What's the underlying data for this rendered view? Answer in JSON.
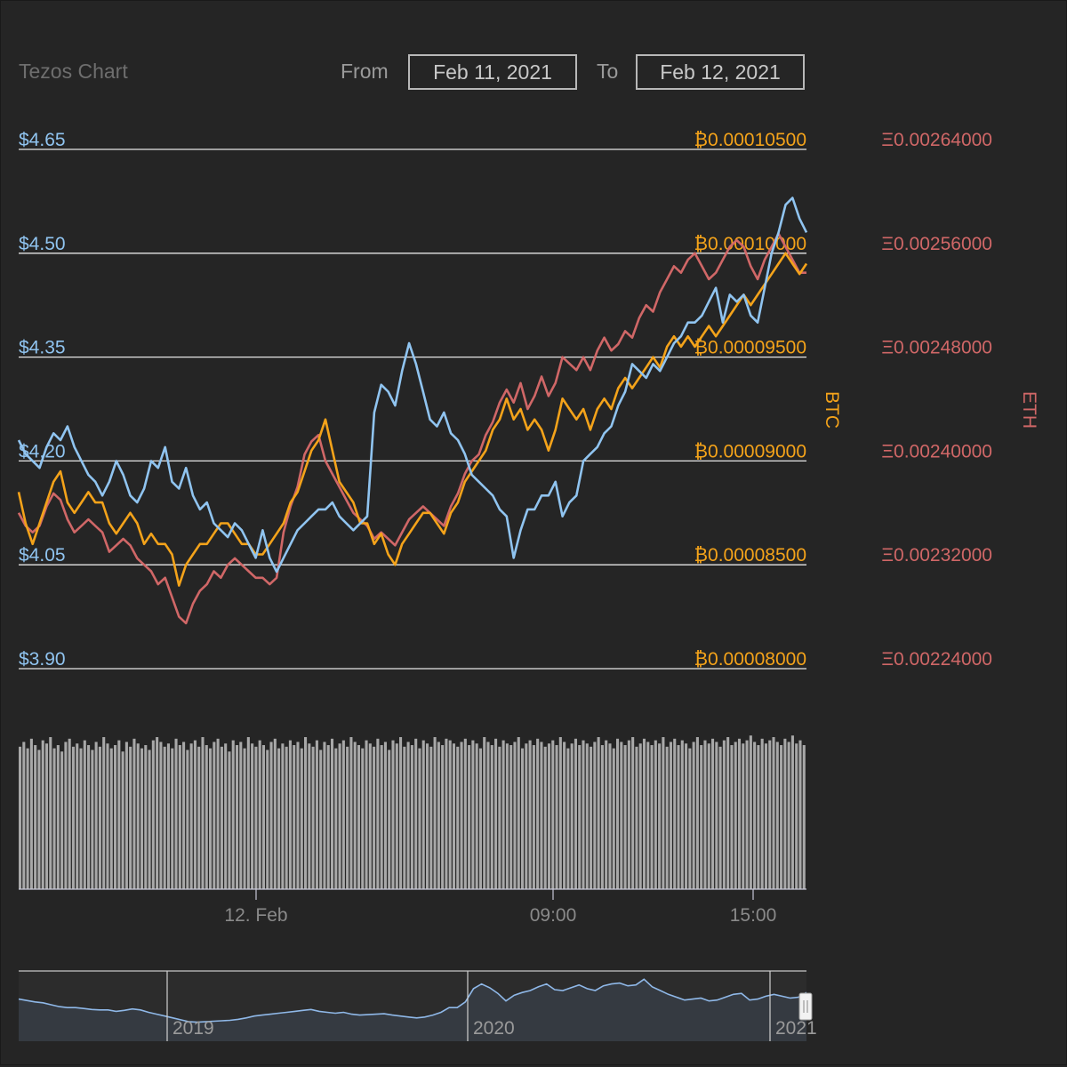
{
  "header": {
    "title": "Tezos Chart",
    "from_label": "From",
    "from_value": "Feb 11, 2021",
    "to_label": "To",
    "to_value": "Feb 12, 2021"
  },
  "colors": {
    "usd": "#90c4f0",
    "btc": "#f4a31a",
    "eth": "#d06767",
    "volume": "#a8a8a8",
    "navigator": "#8fb8e8"
  },
  "chart_data": {
    "type": "line",
    "x_ticks": [
      "12. Feb",
      "09:00",
      "15:00"
    ],
    "axes": {
      "usd": {
        "labels": [
          "$4.65",
          "$4.50",
          "$4.35",
          "$4.20",
          "$4.05",
          "$3.90"
        ],
        "range": [
          3.9,
          4.65
        ]
      },
      "btc": {
        "title": "BTC",
        "labels": [
          "₿0.00010500",
          "₿0.00010000",
          "₿0.00009500",
          "₿0.00009000",
          "₿0.00008500",
          "₿0.00008000"
        ],
        "range": [
          8e-05,
          0.000105
        ]
      },
      "eth": {
        "title": "ETH",
        "labels": [
          "Ξ0.00264000",
          "Ξ0.00256000",
          "Ξ0.00248000",
          "Ξ0.00240000",
          "Ξ0.00232000",
          "Ξ0.00224000"
        ],
        "range": [
          0.00224,
          0.00264
        ]
      }
    },
    "series": [
      {
        "key": "usd",
        "axis": "usd",
        "values": [
          4.23,
          4.21,
          4.2,
          4.19,
          4.22,
          4.24,
          4.23,
          4.25,
          4.22,
          4.2,
          4.18,
          4.17,
          4.15,
          4.17,
          4.2,
          4.18,
          4.15,
          4.14,
          4.16,
          4.2,
          4.19,
          4.22,
          4.17,
          4.16,
          4.19,
          4.15,
          4.13,
          4.14,
          4.11,
          4.1,
          4.09,
          4.11,
          4.1,
          4.08,
          4.06,
          4.1,
          4.06,
          4.04,
          4.06,
          4.08,
          4.1,
          4.11,
          4.12,
          4.13,
          4.13,
          4.14,
          4.12,
          4.11,
          4.1,
          4.11,
          4.12,
          4.27,
          4.31,
          4.3,
          4.28,
          4.33,
          4.37,
          4.34,
          4.3,
          4.26,
          4.25,
          4.27,
          4.24,
          4.23,
          4.21,
          4.18,
          4.17,
          4.16,
          4.15,
          4.13,
          4.12,
          4.06,
          4.1,
          4.13,
          4.13,
          4.15,
          4.15,
          4.17,
          4.12,
          4.14,
          4.15,
          4.2,
          4.21,
          4.22,
          4.24,
          4.25,
          4.28,
          4.3,
          4.34,
          4.33,
          4.32,
          4.34,
          4.33,
          4.35,
          4.37,
          4.38,
          4.4,
          4.4,
          4.41,
          4.43,
          4.45,
          4.4,
          4.44,
          4.43,
          4.44,
          4.41,
          4.4,
          4.45,
          4.5,
          4.53,
          4.57,
          4.58,
          4.55,
          4.53
        ]
      },
      {
        "key": "btc",
        "axis": "btc",
        "values": [
          8.85e-05,
          8.7e-05,
          8.6e-05,
          8.7e-05,
          8.8e-05,
          8.9e-05,
          8.95e-05,
          8.8e-05,
          8.75e-05,
          8.8e-05,
          8.85e-05,
          8.8e-05,
          8.8e-05,
          8.7e-05,
          8.65e-05,
          8.7e-05,
          8.75e-05,
          8.7e-05,
          8.6e-05,
          8.65e-05,
          8.6e-05,
          8.6e-05,
          8.55e-05,
          8.4e-05,
          8.5e-05,
          8.55e-05,
          8.6e-05,
          8.6e-05,
          8.65e-05,
          8.7e-05,
          8.7e-05,
          8.65e-05,
          8.6e-05,
          8.6e-05,
          8.55e-05,
          8.55e-05,
          8.6e-05,
          8.65e-05,
          8.7e-05,
          8.8e-05,
          8.85e-05,
          8.95e-05,
          9.05e-05,
          9.1e-05,
          9.2e-05,
          9.05e-05,
          8.9e-05,
          8.85e-05,
          8.8e-05,
          8.7e-05,
          8.7e-05,
          8.6e-05,
          8.65e-05,
          8.55e-05,
          8.5e-05,
          8.6e-05,
          8.65e-05,
          8.7e-05,
          8.75e-05,
          8.75e-05,
          8.7e-05,
          8.65e-05,
          8.75e-05,
          8.8e-05,
          8.9e-05,
          8.95e-05,
          9e-05,
          9.05e-05,
          9.15e-05,
          9.2e-05,
          9.3e-05,
          9.2e-05,
          9.25e-05,
          9.15e-05,
          9.2e-05,
          9.15e-05,
          9.05e-05,
          9.15e-05,
          9.3e-05,
          9.25e-05,
          9.2e-05,
          9.25e-05,
          9.15e-05,
          9.25e-05,
          9.3e-05,
          9.25e-05,
          9.35e-05,
          9.4e-05,
          9.35e-05,
          9.4e-05,
          9.45e-05,
          9.5e-05,
          9.45e-05,
          9.55e-05,
          9.6e-05,
          9.55e-05,
          9.6e-05,
          9.55e-05,
          9.6e-05,
          9.65e-05,
          9.6e-05,
          9.65e-05,
          9.7e-05,
          9.75e-05,
          9.8e-05,
          9.75e-05,
          9.8e-05,
          9.85e-05,
          9.9e-05,
          9.95e-05,
          0.0001,
          9.95e-05,
          9.9e-05,
          9.95e-05
        ]
      },
      {
        "key": "eth",
        "axis": "eth",
        "values": [
          0.00236,
          0.00235,
          0.002345,
          0.00235,
          0.002365,
          0.002375,
          0.00237,
          0.002355,
          0.002345,
          0.00235,
          0.002355,
          0.00235,
          0.002345,
          0.00233,
          0.002335,
          0.00234,
          0.002335,
          0.002325,
          0.00232,
          0.002315,
          0.002305,
          0.00231,
          0.002295,
          0.00228,
          0.002275,
          0.00229,
          0.0023,
          0.002305,
          0.002315,
          0.00231,
          0.00232,
          0.002325,
          0.00232,
          0.002315,
          0.00231,
          0.00231,
          0.002305,
          0.00231,
          0.002345,
          0.002365,
          0.00238,
          0.002405,
          0.002415,
          0.00242,
          0.0024,
          0.00239,
          0.00238,
          0.00237,
          0.00236,
          0.002355,
          0.00235,
          0.00234,
          0.002345,
          0.00234,
          0.002335,
          0.002345,
          0.002355,
          0.00236,
          0.002365,
          0.00236,
          0.002355,
          0.00235,
          0.002365,
          0.002375,
          0.00239,
          0.0024,
          0.002405,
          0.00242,
          0.00243,
          0.002445,
          0.002455,
          0.002445,
          0.00246,
          0.00244,
          0.00245,
          0.002465,
          0.00245,
          0.00246,
          0.00248,
          0.002475,
          0.00247,
          0.00248,
          0.00247,
          0.002485,
          0.002495,
          0.002485,
          0.00249,
          0.0025,
          0.002495,
          0.00251,
          0.00252,
          0.002515,
          0.00253,
          0.00254,
          0.00255,
          0.002545,
          0.002555,
          0.00256,
          0.00255,
          0.00254,
          0.002545,
          0.002555,
          0.002565,
          0.00257,
          0.002565,
          0.00255,
          0.00254,
          0.002555,
          0.002565,
          0.002575,
          0.002565,
          0.002555,
          0.002545,
          0.002545
        ]
      }
    ],
    "volume": [
      0.89,
      0.92,
      0.88,
      0.94,
      0.9,
      0.87,
      0.93,
      0.91,
      0.95,
      0.88,
      0.9,
      0.86,
      0.92,
      0.94,
      0.89,
      0.91,
      0.88,
      0.93,
      0.9,
      0.87,
      0.92,
      0.89,
      0.95,
      0.91,
      0.88,
      0.9,
      0.93,
      0.86,
      0.92,
      0.89,
      0.94,
      0.91,
      0.88,
      0.9,
      0.87,
      0.93,
      0.95,
      0.92,
      0.89,
      0.91,
      0.88,
      0.94,
      0.9,
      0.92,
      0.87,
      0.91,
      0.93,
      0.89,
      0.95,
      0.9,
      0.88,
      0.92,
      0.94,
      0.89,
      0.91,
      0.86,
      0.93,
      0.9,
      0.92,
      0.88,
      0.95,
      0.91,
      0.89,
      0.93,
      0.9,
      0.87,
      0.92,
      0.94,
      0.88,
      0.91,
      0.89,
      0.93,
      0.9,
      0.92,
      0.88,
      0.95,
      0.91,
      0.89,
      0.93,
      0.87,
      0.92,
      0.9,
      0.94,
      0.88,
      0.91,
      0.93,
      0.89,
      0.95,
      0.92,
      0.9,
      0.88,
      0.93,
      0.91,
      0.89,
      0.94,
      0.9,
      0.92,
      0.87,
      0.93,
      0.91,
      0.95,
      0.89,
      0.92,
      0.9,
      0.94,
      0.88,
      0.93,
      0.91,
      0.89,
      0.95,
      0.92,
      0.9,
      0.94,
      0.93,
      0.91,
      0.89,
      0.92,
      0.94,
      0.9,
      0.93,
      0.91,
      0.88,
      0.95,
      0.92,
      0.9,
      0.94,
      0.89,
      0.93,
      0.91,
      0.9,
      0.92,
      0.95,
      0.88,
      0.91,
      0.93,
      0.9,
      0.94,
      0.92,
      0.89,
      0.91,
      0.93,
      0.9,
      0.95,
      0.92,
      0.88,
      0.91,
      0.94,
      0.9,
      0.93,
      0.91,
      0.89,
      0.92,
      0.95,
      0.9,
      0.93,
      0.91,
      0.88,
      0.94,
      0.92,
      0.9,
      0.93,
      0.95,
      0.89,
      0.91,
      0.94,
      0.92,
      0.9,
      0.93,
      0.91,
      0.95,
      0.89,
      0.92,
      0.94,
      0.9,
      0.93,
      0.91,
      0.88,
      0.92,
      0.95,
      0.9,
      0.93,
      0.91,
      0.94,
      0.92,
      0.89,
      0.93,
      0.95,
      0.9,
      0.92,
      0.94,
      0.91,
      0.93,
      0.96,
      0.92,
      0.9,
      0.94,
      0.91,
      0.93,
      0.95,
      0.92,
      0.9,
      0.94,
      0.92,
      0.96,
      0.91,
      0.93,
      0.9
    ],
    "navigator": {
      "labels": [
        "2019",
        "2020",
        "2021"
      ],
      "values": [
        0.78,
        0.75,
        0.72,
        0.7,
        0.66,
        0.62,
        0.6,
        0.6,
        0.58,
        0.56,
        0.55,
        0.55,
        0.52,
        0.54,
        0.57,
        0.55,
        0.5,
        0.46,
        0.42,
        0.38,
        0.34,
        0.3,
        0.29,
        0.3,
        0.31,
        0.32,
        0.33,
        0.35,
        0.38,
        0.42,
        0.44,
        0.46,
        0.48,
        0.5,
        0.52,
        0.54,
        0.56,
        0.52,
        0.5,
        0.48,
        0.5,
        0.46,
        0.44,
        0.45,
        0.46,
        0.47,
        0.44,
        0.42,
        0.4,
        0.38,
        0.4,
        0.44,
        0.5,
        0.6,
        0.6,
        0.72,
        1.0,
        1.1,
        1.02,
        0.9,
        0.74,
        0.86,
        0.92,
        0.96,
        1.04,
        1.1,
        0.98,
        0.96,
        1.02,
        1.08,
        1.0,
        0.96,
        1.06,
        1.1,
        1.12,
        1.06,
        1.08,
        1.2,
        1.04,
        0.96,
        0.88,
        0.82,
        0.76,
        0.78,
        0.8,
        0.74,
        0.76,
        0.82,
        0.88,
        0.9,
        0.76,
        0.78,
        0.84,
        0.88,
        0.84,
        0.8,
        0.82,
        0.92
      ]
    }
  }
}
